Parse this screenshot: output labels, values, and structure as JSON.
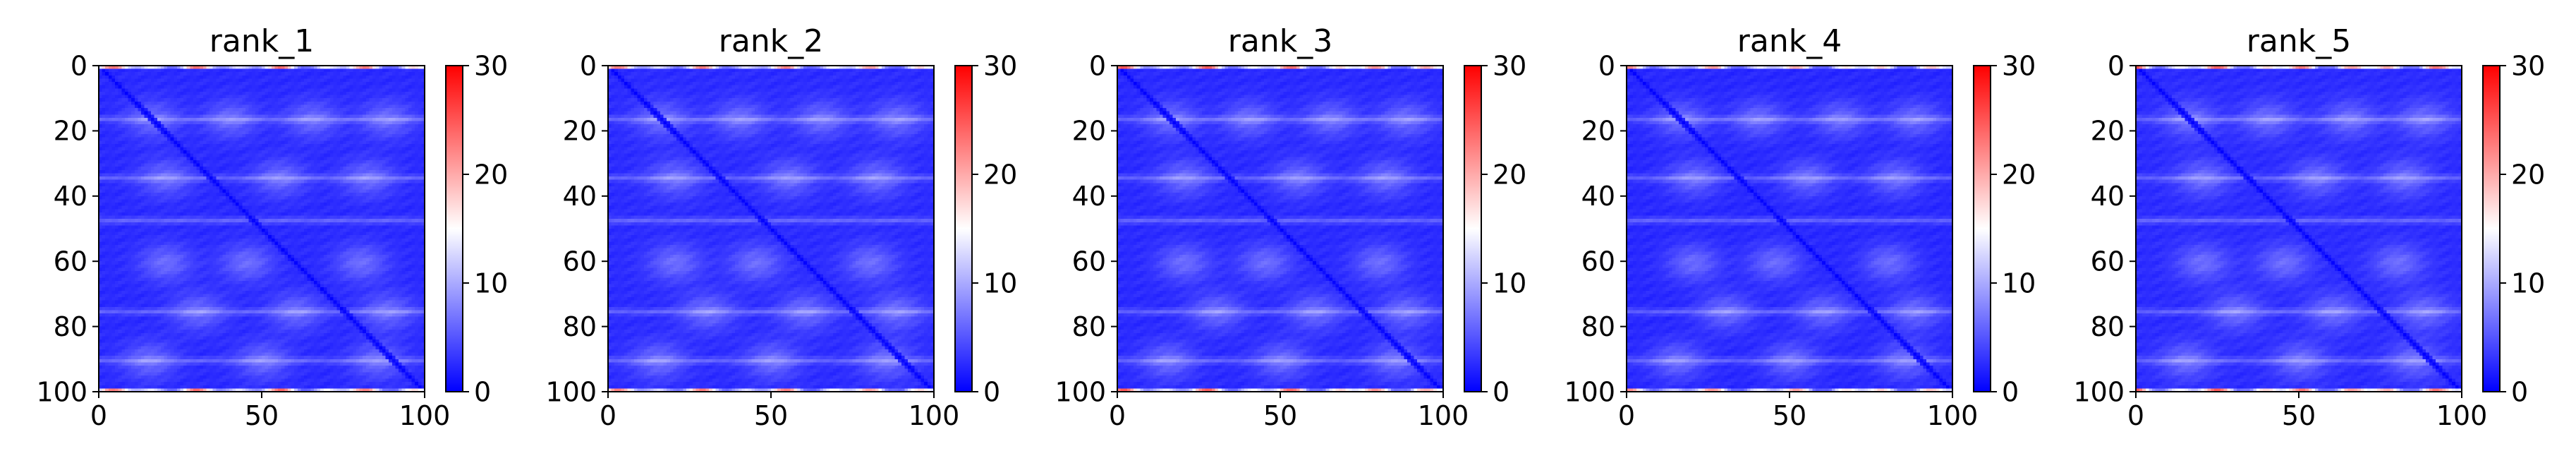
{
  "figure": {
    "titles": [
      "rank_1",
      "rank_2",
      "rank_3",
      "rank_4",
      "rank_5"
    ]
  },
  "chart_data": [
    {
      "type": "heatmap",
      "title": "rank_1",
      "xlabel": "",
      "ylabel": "",
      "xlim": [
        0,
        100
      ],
      "ylim": [
        100,
        0
      ],
      "xticks": [
        0,
        50,
        100
      ],
      "yticks": [
        0,
        20,
        40,
        60,
        80,
        100
      ],
      "colorbar": {
        "range": [
          0,
          30
        ],
        "ticks": [
          0,
          10,
          20,
          30
        ],
        "colormap": "bwr",
        "colors": [
          "#0000ff",
          "#ffffff",
          "#ff0000"
        ]
      },
      "matrix_size": 100,
      "pattern": {
        "background_value": 2.5,
        "diagonal_value": 0.3,
        "light_band_rows": [
          16,
          34,
          47,
          75,
          90
        ],
        "light_band_value": 9,
        "light_blob_centers": [
          [
            16,
            16
          ],
          [
            16,
            40
          ],
          [
            16,
            65
          ],
          [
            16,
            88
          ],
          [
            34,
            20
          ],
          [
            34,
            55
          ],
          [
            34,
            82
          ],
          [
            60,
            20
          ],
          [
            60,
            45
          ],
          [
            60,
            80
          ],
          [
            75,
            30
          ],
          [
            75,
            60
          ],
          [
            75,
            88
          ],
          [
            90,
            15
          ],
          [
            90,
            50
          ],
          [
            90,
            85
          ]
        ],
        "light_blob_value": 7,
        "red_edge_rows": [
          0,
          99
        ],
        "red_edge_value": 24,
        "gap_variation": 0.0
      }
    },
    {
      "type": "heatmap",
      "title": "rank_2",
      "xlabel": "",
      "ylabel": "",
      "xlim": [
        0,
        100
      ],
      "ylim": [
        100,
        0
      ],
      "xticks": [
        0,
        50,
        100
      ],
      "yticks": [
        0,
        20,
        40,
        60,
        80,
        100
      ],
      "colorbar": {
        "range": [
          0,
          30
        ],
        "ticks": [
          0,
          10,
          20,
          30
        ],
        "colormap": "bwr",
        "colors": [
          "#0000ff",
          "#ffffff",
          "#ff0000"
        ]
      },
      "matrix_size": 100,
      "pattern": {
        "background_value": 2.6,
        "diagonal_value": 0.3,
        "light_band_rows": [
          16,
          34,
          47,
          75,
          90
        ],
        "light_band_value": 9,
        "light_blob_centers": [
          [
            16,
            16
          ],
          [
            16,
            40
          ],
          [
            16,
            65
          ],
          [
            16,
            88
          ],
          [
            34,
            20
          ],
          [
            34,
            55
          ],
          [
            34,
            82
          ],
          [
            60,
            20
          ],
          [
            60,
            45
          ],
          [
            60,
            80
          ],
          [
            75,
            30
          ],
          [
            75,
            60
          ],
          [
            75,
            88
          ],
          [
            90,
            15
          ],
          [
            90,
            50
          ],
          [
            90,
            85
          ]
        ],
        "light_blob_value": 7,
        "red_edge_rows": [
          0,
          99
        ],
        "red_edge_value": 23,
        "gap_variation": 0.1
      }
    },
    {
      "type": "heatmap",
      "title": "rank_3",
      "xlabel": "",
      "ylabel": "",
      "xlim": [
        0,
        100
      ],
      "ylim": [
        100,
        0
      ],
      "xticks": [
        0,
        50,
        100
      ],
      "yticks": [
        0,
        20,
        40,
        60,
        80,
        100
      ],
      "colorbar": {
        "range": [
          0,
          30
        ],
        "ticks": [
          0,
          10,
          20,
          30
        ],
        "colormap": "bwr",
        "colors": [
          "#0000ff",
          "#ffffff",
          "#ff0000"
        ]
      },
      "matrix_size": 100,
      "pattern": {
        "background_value": 2.5,
        "diagonal_value": 0.3,
        "light_band_rows": [
          16,
          34,
          47,
          75,
          90
        ],
        "light_band_value": 9,
        "light_blob_centers": [
          [
            16,
            16
          ],
          [
            16,
            40
          ],
          [
            16,
            65
          ],
          [
            16,
            88
          ],
          [
            34,
            20
          ],
          [
            34,
            55
          ],
          [
            34,
            82
          ],
          [
            60,
            20
          ],
          [
            60,
            45
          ],
          [
            60,
            80
          ],
          [
            75,
            30
          ],
          [
            75,
            60
          ],
          [
            75,
            88
          ],
          [
            90,
            15
          ],
          [
            90,
            50
          ],
          [
            90,
            85
          ]
        ],
        "light_blob_value": 7,
        "red_edge_rows": [
          0,
          99
        ],
        "red_edge_value": 25,
        "gap_variation": 0.2
      }
    },
    {
      "type": "heatmap",
      "title": "rank_4",
      "xlabel": "",
      "ylabel": "",
      "xlim": [
        0,
        100
      ],
      "ylim": [
        100,
        0
      ],
      "xticks": [
        0,
        50,
        100
      ],
      "yticks": [
        0,
        20,
        40,
        60,
        80,
        100
      ],
      "colorbar": {
        "range": [
          0,
          30
        ],
        "ticks": [
          0,
          10,
          20,
          30
        ],
        "colormap": "bwr",
        "colors": [
          "#0000ff",
          "#ffffff",
          "#ff0000"
        ]
      },
      "matrix_size": 100,
      "pattern": {
        "background_value": 2.4,
        "diagonal_value": 0.3,
        "light_band_rows": [
          16,
          34,
          47,
          75,
          90
        ],
        "light_band_value": 9,
        "light_blob_centers": [
          [
            16,
            16
          ],
          [
            16,
            40
          ],
          [
            16,
            65
          ],
          [
            16,
            88
          ],
          [
            34,
            20
          ],
          [
            34,
            55
          ],
          [
            34,
            82
          ],
          [
            60,
            20
          ],
          [
            60,
            45
          ],
          [
            60,
            80
          ],
          [
            75,
            30
          ],
          [
            75,
            60
          ],
          [
            75,
            88
          ],
          [
            90,
            15
          ],
          [
            90,
            50
          ],
          [
            90,
            85
          ]
        ],
        "light_blob_value": 7,
        "red_edge_rows": [
          0,
          99
        ],
        "red_edge_value": 22,
        "gap_variation": 0.3
      }
    },
    {
      "type": "heatmap",
      "title": "rank_5",
      "xlabel": "",
      "ylabel": "",
      "xlim": [
        0,
        100
      ],
      "ylim": [
        100,
        0
      ],
      "xticks": [
        0,
        50,
        100
      ],
      "yticks": [
        0,
        20,
        40,
        60,
        80,
        100
      ],
      "colorbar": {
        "range": [
          0,
          30
        ],
        "ticks": [
          0,
          10,
          20,
          30
        ],
        "colormap": "bwr",
        "colors": [
          "#0000ff",
          "#ffffff",
          "#ff0000"
        ]
      },
      "matrix_size": 100,
      "pattern": {
        "background_value": 2.6,
        "diagonal_value": 0.3,
        "light_band_rows": [
          16,
          34,
          47,
          75,
          90
        ],
        "light_band_value": 9,
        "light_blob_centers": [
          [
            16,
            16
          ],
          [
            16,
            40
          ],
          [
            16,
            65
          ],
          [
            16,
            88
          ],
          [
            34,
            20
          ],
          [
            34,
            55
          ],
          [
            34,
            82
          ],
          [
            60,
            20
          ],
          [
            60,
            45
          ],
          [
            60,
            80
          ],
          [
            75,
            30
          ],
          [
            75,
            60
          ],
          [
            75,
            88
          ],
          [
            90,
            15
          ],
          [
            90,
            50
          ],
          [
            90,
            85
          ]
        ],
        "light_blob_value": 7,
        "red_edge_rows": [
          0,
          99
        ],
        "red_edge_value": 26,
        "gap_variation": 0.4
      }
    }
  ]
}
